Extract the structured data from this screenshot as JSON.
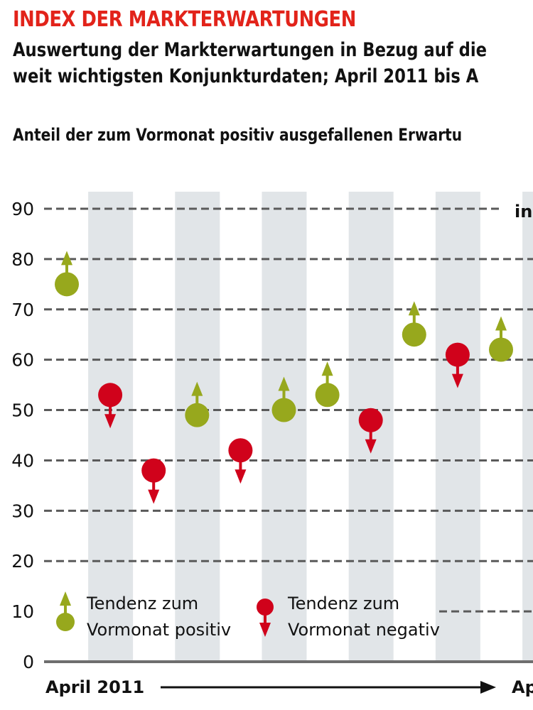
{
  "header": {
    "title": "INDEX DER MARKTERWARTUNGEN",
    "subtitle_line1": "Auswertung der Markterwartungen in Bezug auf die",
    "subtitle_line2": "weit wichtigsten Konjunkturdaten; April 2011 bis A",
    "measure": "Anteil der zum Vormonat positiv ausgefallenen Erwartu"
  },
  "colors": {
    "positive": "#97a81d",
    "negative": "#d0021b",
    "band": "#e1e5e8",
    "grid": "#5a5a5a",
    "title": "#e2231a"
  },
  "chart_data": {
    "type": "scatter",
    "title": "INDEX DER MARKTERWARTUNGEN",
    "ylabel": "",
    "unit_label_partial": "in",
    "xlabel_start": "April 2011",
    "xlabel_end_partial": "Ap",
    "ylim": [
      0,
      90
    ],
    "yticks": [
      0,
      10,
      20,
      30,
      40,
      50,
      60,
      70,
      80,
      90
    ],
    "grid": true,
    "points": [
      {
        "index": 1,
        "value": 75,
        "trend": "positive"
      },
      {
        "index": 2,
        "value": 53,
        "trend": "negative"
      },
      {
        "index": 3,
        "value": 38,
        "trend": "negative"
      },
      {
        "index": 4,
        "value": 49,
        "trend": "positive"
      },
      {
        "index": 5,
        "value": 42,
        "trend": "negative"
      },
      {
        "index": 6,
        "value": 50,
        "trend": "positive"
      },
      {
        "index": 7,
        "value": 53,
        "trend": "positive"
      },
      {
        "index": 8,
        "value": 48,
        "trend": "negative"
      },
      {
        "index": 9,
        "value": 65,
        "trend": "positive"
      },
      {
        "index": 10,
        "value": 61,
        "trend": "negative"
      },
      {
        "index": 11,
        "value": 62,
        "trend": "positive"
      }
    ],
    "legend": {
      "placement": "bottom-left",
      "positive_line1": "Tendenz zum",
      "positive_line2": "Vormonat positiv",
      "negative_line1": "Tendenz zum",
      "negative_line2": "Vormonat negativ"
    }
  }
}
